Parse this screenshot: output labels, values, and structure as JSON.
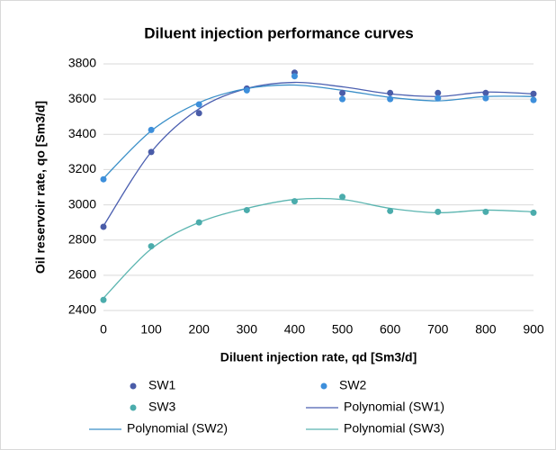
{
  "chart_data": {
    "type": "scatter",
    "title": "Diluent injection performance curves",
    "x_label": "Diluent injection rate, qd [Sm3/d]",
    "y_label": "Oil reservoir rate, qo [Sm3/d]",
    "x": [
      0,
      100,
      200,
      300,
      400,
      500,
      600,
      700,
      800,
      900
    ],
    "series": [
      {
        "name": "SW1",
        "color": "#4a5ca8",
        "values": [
          2875,
          3300,
          3520,
          3660,
          3750,
          3635,
          3635,
          3635,
          3635,
          3630
        ]
      },
      {
        "name": "SW2",
        "color": "#3d8fdb",
        "values": [
          3145,
          3425,
          3570,
          3650,
          3730,
          3600,
          3600,
          3605,
          3605,
          3595
        ]
      },
      {
        "name": "SW3",
        "color": "#4bacac",
        "values": [
          2460,
          2765,
          2900,
          2970,
          3020,
          3045,
          2965,
          2960,
          2960,
          2955
        ]
      }
    ],
    "trendlines": [
      {
        "name": "Polynomial (SW1)",
        "color": "#4b5fb0",
        "values": [
          2880,
          3300,
          3545,
          3660,
          3695,
          3670,
          3630,
          3615,
          3640,
          3630
        ]
      },
      {
        "name": "Polynomial (SW2)",
        "color": "#3a8fc8",
        "values": [
          3150,
          3420,
          3580,
          3660,
          3680,
          3650,
          3610,
          3590,
          3615,
          3615
        ]
      },
      {
        "name": "Polynomial (SW3)",
        "color": "#5bb5b0",
        "values": [
          2470,
          2750,
          2900,
          2980,
          3030,
          3030,
          2980,
          2955,
          2970,
          2960
        ]
      }
    ],
    "xlim": [
      0,
      900
    ],
    "xticks": [
      0,
      100,
      200,
      300,
      400,
      500,
      600,
      700,
      800,
      900
    ],
    "ylim": [
      2400,
      3800
    ],
    "yticks": [
      2400,
      2600,
      2800,
      3000,
      3200,
      3400,
      3600,
      3800
    ],
    "grid": true,
    "legend": "bottom"
  }
}
